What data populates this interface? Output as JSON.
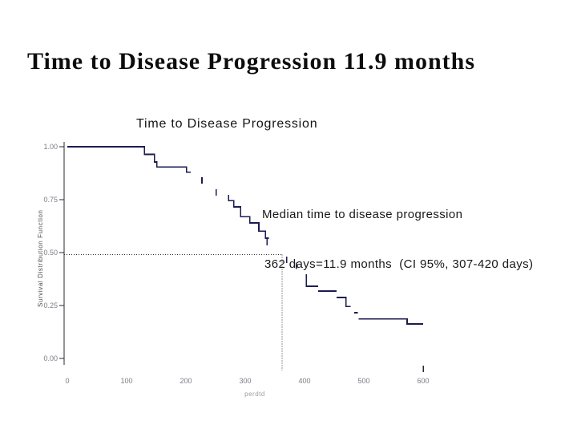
{
  "slide": {
    "title": "Time to Disease Progression 11.9 months"
  },
  "annotation": {
    "line1": "Median time to disease progression",
    "line2": "362 days=11.9 months  (CI 95%, 307-420 days)"
  },
  "chart_data": {
    "type": "line",
    "variant": "kaplan-meier-step",
    "title": "Time to Disease Progression",
    "xlabel": "perdtd",
    "ylabel": "Survival Distribution Function",
    "xlim": [
      0,
      600
    ],
    "ylim": [
      0.0,
      1.0
    ],
    "xticks": [
      0,
      100,
      200,
      300,
      400,
      500,
      600
    ],
    "ytick_labels": [
      "1.00",
      "0.75",
      "0.50",
      "0.25",
      "0.00"
    ],
    "yticks": [
      1.0,
      0.75,
      0.5,
      0.25,
      0.0
    ],
    "xtick_marks": [
      600
    ],
    "grid": false,
    "legend": "none",
    "median_reference": {
      "day": 362,
      "survival": 0.49
    },
    "colors": {
      "curve": "#1b1b52",
      "axis": "#2a2a2e",
      "tick_label": "#7c7c86",
      "xlabel_color": "#9b9ba3",
      "dotted": "#2e2e2e"
    },
    "series": [
      {
        "name": "Time to disease progression",
        "color": "#1b1b52",
        "segments": [
          [
            [
              0,
              1.0
            ],
            [
              130,
              1.0
            ],
            [
              130,
              0.964
            ],
            [
              147,
              0.964
            ],
            [
              147,
              0.928
            ],
            [
              151,
              0.928
            ],
            [
              151,
              0.905
            ],
            [
              201,
              0.905
            ],
            [
              201,
              0.879
            ],
            [
              208,
              0.879
            ]
          ],
          [
            [
              272,
              0.773
            ],
            [
              272,
              0.746
            ],
            [
              281,
              0.746
            ],
            [
              281,
              0.716
            ],
            [
              292,
              0.716
            ],
            [
              292,
              0.67
            ],
            [
              308,
              0.67
            ],
            [
              308,
              0.64
            ],
            [
              323,
              0.64
            ],
            [
              323,
              0.602
            ],
            [
              334,
              0.602
            ],
            [
              334,
              0.568
            ],
            [
              340,
              0.568
            ]
          ],
          [
            [
              403,
              0.398
            ],
            [
              403,
              0.341
            ],
            [
              423,
              0.341
            ]
          ],
          [
            [
              423,
              0.318
            ],
            [
              454,
              0.318
            ]
          ],
          [
            [
              454,
              0.288
            ],
            [
              470,
              0.288
            ],
            [
              470,
              0.246
            ],
            [
              478,
              0.246
            ]
          ],
          [
            [
              484,
              0.216
            ],
            [
              490,
              0.216
            ]
          ],
          [
            [
              491,
              0.186
            ],
            [
              573,
              0.186
            ],
            [
              573,
              0.163
            ],
            [
              600,
              0.163
            ]
          ]
        ],
        "censor_ticks": [
          [
            227,
            0.84
          ],
          [
            251,
            0.785
          ],
          [
            337,
            0.55
          ],
          [
            370,
            0.466
          ],
          [
            386,
            0.438
          ]
        ]
      }
    ]
  }
}
